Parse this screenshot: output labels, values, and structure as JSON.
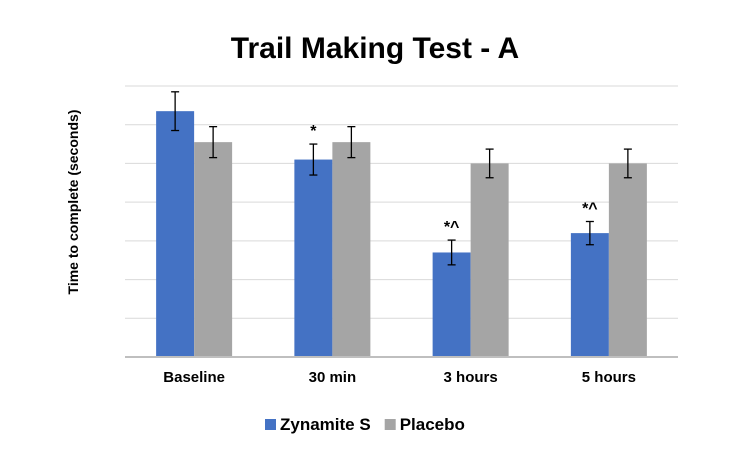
{
  "chart_data": {
    "type": "bar",
    "title": "Trail Making Test - A",
    "xlabel": "",
    "ylabel": "Time to complete (seconds)",
    "categories": [
      "Baseline",
      "30 min",
      "3 hours",
      "5 hours"
    ],
    "ylim": [
      0,
      7
    ],
    "gridlines": 7,
    "grid": true,
    "y_tick_labels_shown": false,
    "legend_position": "bottom",
    "series": [
      {
        "name": "Zynamite S",
        "color": "#4472c4",
        "values": [
          6.35,
          5.1,
          2.7,
          3.2
        ],
        "errors": [
          0.5,
          0.4,
          0.32,
          0.3
        ],
        "annotations": [
          "",
          "*",
          "*^",
          "*^"
        ]
      },
      {
        "name": "Placebo",
        "color": "#a5a5a5",
        "values": [
          5.55,
          5.55,
          5.0,
          5.0
        ],
        "errors": [
          0.4,
          0.4,
          0.37,
          0.37
        ],
        "annotations": [
          "",
          "",
          "",
          ""
        ]
      }
    ]
  }
}
